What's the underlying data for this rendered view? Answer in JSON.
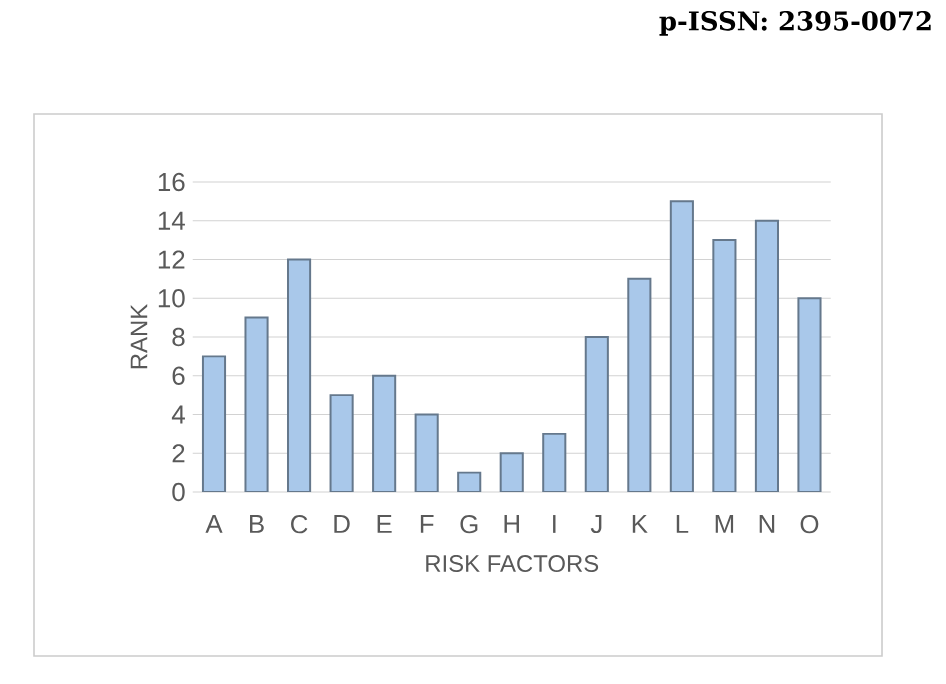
{
  "chart_data": {
    "type": "bar",
    "xlabel": "RISK FACTORS",
    "ylabel": "RANK",
    "categories": [
      "A",
      "B",
      "C",
      "D",
      "E",
      "F",
      "G",
      "H",
      "I",
      "J",
      "K",
      "L",
      "M",
      "N",
      "O"
    ],
    "values": [
      7,
      9,
      12,
      5,
      6,
      4,
      1,
      2,
      3,
      8,
      11,
      15,
      13,
      14,
      10
    ],
    "color": "#a9c8ea",
    "ylim": [
      0,
      16
    ],
    "yticks": [
      0,
      2,
      4,
      6,
      8,
      10,
      12,
      14,
      16
    ],
    "grid": "y",
    "annotations": [
      "p-ISSN: 2395-0072"
    ]
  }
}
